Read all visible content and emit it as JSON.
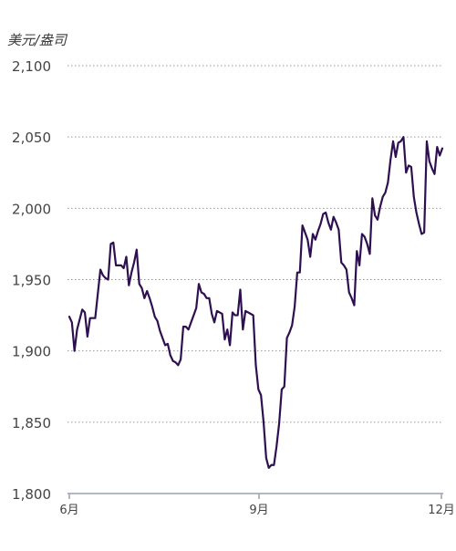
{
  "chart_data": {
    "type": "line",
    "ylabel": "美元/盎司",
    "ylim": [
      1800,
      2100
    ],
    "y_ticks": [
      {
        "value": 1800,
        "label": "1,800"
      },
      {
        "value": 1850,
        "label": "1,850"
      },
      {
        "value": 1900,
        "label": "1,900"
      },
      {
        "value": 1950,
        "label": "1,950"
      },
      {
        "value": 2000,
        "label": "2,000"
      },
      {
        "value": 2050,
        "label": "2,050"
      },
      {
        "value": 2100,
        "label": "2,100"
      }
    ],
    "x_ticks": [
      "6月",
      "9月",
      "12月"
    ],
    "grid": true,
    "line_color": "#2e1050",
    "series": [
      {
        "values": [
          1924,
          1920,
          1900,
          1915,
          1922,
          1929,
          1927,
          1910,
          1923,
          1923,
          1923,
          1940,
          1957,
          1953,
          1951,
          1950,
          1975,
          1976,
          1960,
          1960,
          1960,
          1958,
          1966,
          1946,
          1955,
          1962,
          1971,
          1947,
          1944,
          1937,
          1942,
          1937,
          1931,
          1924,
          1921,
          1914,
          1909,
          1904,
          1905,
          1897,
          1893,
          1892,
          1890,
          1894,
          1917,
          1917,
          1915,
          1920,
          1925,
          1930,
          1947,
          1941,
          1940,
          1937,
          1937,
          1926,
          1920,
          1928,
          1927,
          1926,
          1908,
          1915,
          1904,
          1927,
          1925,
          1925,
          1943,
          1915,
          1928,
          1927,
          1926,
          1925,
          1890,
          1873,
          1869,
          1850,
          1825,
          1818,
          1820,
          1820,
          1833,
          1849,
          1873,
          1875,
          1909,
          1913,
          1918,
          1931,
          1955,
          1955,
          1988,
          1983,
          1978,
          1966,
          1982,
          1978,
          1984,
          1989,
          1996,
          1997,
          1990,
          1985,
          1994,
          1990,
          1985,
          1962,
          1960,
          1957,
          1941,
          1937,
          1932,
          1970,
          1960,
          1982,
          1980,
          1975,
          1968,
          2007,
          1995,
          1992,
          2001,
          2008,
          2011,
          2018,
          2034,
          2047,
          2036,
          2046,
          2047,
          2050,
          2025,
          2030,
          2029,
          2008,
          1997,
          1989,
          1982,
          1983,
          2047,
          2033,
          2028,
          2024,
          2043,
          2037,
          2042
        ]
      }
    ]
  }
}
